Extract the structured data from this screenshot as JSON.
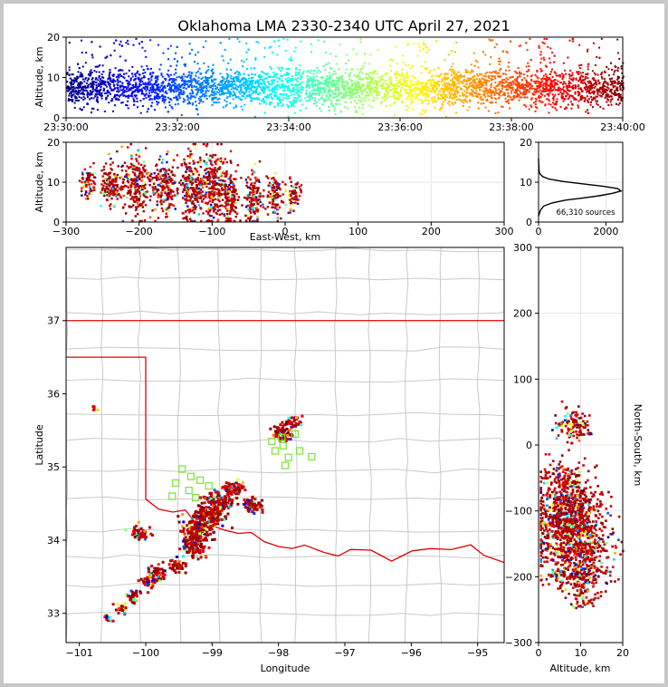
{
  "chart_data": [
    {
      "panel": "time-height",
      "type": "scatter",
      "title": "Oklahoma LMA 2330-2340 UTC April 27, 2021",
      "xlabel": "",
      "ylabel": "Altitude, km",
      "xlim": [
        "23:30:00",
        "23:40:00"
      ],
      "ylim": [
        0,
        20
      ],
      "x_ticks": [
        "23:30:00",
        "23:32:00",
        "23:34:00",
        "23:36:00",
        "23:38:00",
        "23:40:00"
      ],
      "y_ticks": [
        "0",
        "10",
        "20"
      ],
      "colormap": "jet (time)",
      "density_profile": {
        "core_altitude_km": [
          3,
          12
        ],
        "sparse_max_km": 20
      }
    },
    {
      "panel": "east-west-altitude",
      "type": "scatter",
      "xlabel": "East-West, km",
      "ylabel": "Altitude, km",
      "xlim": [
        -300,
        300
      ],
      "ylim": [
        0,
        20
      ],
      "x_ticks": [
        "−300",
        "−200",
        "−100",
        "0",
        "100",
        "200",
        "300"
      ],
      "y_ticks": [
        "0",
        "10",
        "20"
      ],
      "clusters": [
        {
          "x": -270,
          "y": 10,
          "spread_x": 8,
          "spread_y": 2
        },
        {
          "x": -240,
          "y": 10,
          "spread_x": 12,
          "spread_y": 3
        },
        {
          "x": -205,
          "y": 9,
          "spread_x": 14,
          "spread_y": 4
        },
        {
          "x": -165,
          "y": 9,
          "spread_x": 12,
          "spread_y": 4
        },
        {
          "x": -130,
          "y": 9,
          "spread_x": 10,
          "spread_y": 5
        },
        {
          "x": -100,
          "y": 9,
          "spread_x": 14,
          "spread_y": 5
        },
        {
          "x": -75,
          "y": 7,
          "spread_x": 8,
          "spread_y": 4
        },
        {
          "x": -45,
          "y": 6,
          "spread_x": 8,
          "spread_y": 4
        },
        {
          "x": -15,
          "y": 7,
          "spread_x": 8,
          "spread_y": 3
        },
        {
          "x": 10,
          "y": 7,
          "spread_x": 8,
          "spread_y": 2
        }
      ]
    },
    {
      "panel": "altitude-histogram",
      "type": "line",
      "xlabel": "",
      "ylabel": "",
      "xlim": [
        0,
        2500
      ],
      "ylim": [
        0,
        20
      ],
      "x_ticks": [
        "0",
        "2000"
      ],
      "y_ticks": [
        "0",
        "10",
        "20"
      ],
      "annotation": "66,310 sources",
      "x": [
        0,
        20,
        60,
        150,
        400,
        800,
        1300,
        1800,
        2200,
        2450,
        2350,
        1900,
        1300,
        700,
        300,
        120,
        50,
        20,
        10,
        5,
        0
      ],
      "y": [
        1.5,
        2,
        3,
        4,
        4.8,
        5.5,
        6,
        6.6,
        7.2,
        7.8,
        8.4,
        9,
        9.6,
        10.2,
        10.8,
        11.4,
        12,
        12.6,
        13.4,
        14.5,
        16
      ]
    },
    {
      "panel": "plan-view",
      "type": "scatter",
      "xlabel": "Longitude",
      "ylabel": "Latitude",
      "xlim": [
        -101.2,
        -94.6
      ],
      "ylim": [
        32.6,
        38.0
      ],
      "x_ticks": [
        "−101",
        "−100",
        "−99",
        "−98",
        "−97",
        "−96",
        "−95"
      ],
      "y_ticks": [
        "33",
        "34",
        "35",
        "36",
        "37"
      ],
      "stations_color": "#7fe03a",
      "stations": [
        [
          -99.45,
          34.97
        ],
        [
          -99.32,
          34.87
        ],
        [
          -99.18,
          34.82
        ],
        [
          -99.05,
          34.74
        ],
        [
          -99.55,
          34.78
        ],
        [
          -99.35,
          34.68
        ],
        [
          -99.6,
          34.6
        ],
        [
          -99.25,
          34.58
        ],
        [
          -97.93,
          35.29
        ],
        [
          -98.05,
          35.22
        ],
        [
          -97.85,
          35.13
        ],
        [
          -97.68,
          35.22
        ],
        [
          -97.5,
          35.14
        ],
        [
          -97.9,
          35.02
        ],
        [
          -97.95,
          35.4
        ],
        [
          -98.1,
          35.35
        ],
        [
          -97.75,
          35.45
        ]
      ],
      "clusters": [
        {
          "lon": -100.8,
          "lat": 35.83,
          "s": 0.05,
          "n": 6
        },
        {
          "lon": -100.6,
          "lat": 32.95,
          "s": 0.05,
          "n": 10
        },
        {
          "lon": -100.4,
          "lat": 33.1,
          "s": 0.06,
          "n": 20
        },
        {
          "lon": -100.2,
          "lat": 33.25,
          "s": 0.07,
          "n": 30
        },
        {
          "lon": -100.0,
          "lat": 33.45,
          "s": 0.07,
          "n": 30
        },
        {
          "lon": -99.85,
          "lat": 33.55,
          "s": 0.1,
          "n": 60
        },
        {
          "lon": -99.55,
          "lat": 33.68,
          "s": 0.08,
          "n": 40
        },
        {
          "lon": -100.1,
          "lat": 34.1,
          "s": 0.1,
          "n": 45
        },
        {
          "lon": -99.3,
          "lat": 33.95,
          "s": 0.12,
          "n": 120
        },
        {
          "lon": -99.25,
          "lat": 34.15,
          "s": 0.13,
          "n": 140
        },
        {
          "lon": -99.05,
          "lat": 34.35,
          "s": 0.15,
          "n": 160
        },
        {
          "lon": -98.9,
          "lat": 34.55,
          "s": 0.12,
          "n": 110
        },
        {
          "lon": -98.7,
          "lat": 34.72,
          "s": 0.1,
          "n": 70
        },
        {
          "lon": -98.4,
          "lat": 34.5,
          "s": 0.09,
          "n": 60
        },
        {
          "lon": -97.95,
          "lat": 35.48,
          "s": 0.09,
          "n": 60
        },
        {
          "lon": -97.8,
          "lat": 35.63,
          "s": 0.07,
          "n": 40
        }
      ],
      "border_color": "#e00000",
      "county_color": "#c8c8c8"
    },
    {
      "panel": "altitude-north-south",
      "type": "scatter",
      "xlabel": "Altitude, km",
      "ylabel": "North-South, km",
      "xlim": [
        0,
        20
      ],
      "ylim": [
        -300,
        300
      ],
      "x_ticks": [
        "0",
        "10",
        "20"
      ],
      "y_ticks": [
        "−300",
        "−200",
        "−100",
        "0",
        "100",
        "200",
        "300"
      ],
      "clusters": [
        {
          "alt": 8,
          "ns": 30,
          "s_alt": 2,
          "s_ns": 12,
          "n": 120
        },
        {
          "alt": 6,
          "ns": -50,
          "s_alt": 3,
          "s_ns": 15,
          "n": 150
        },
        {
          "alt": 7,
          "ns": -95,
          "s_alt": 4,
          "s_ns": 18,
          "n": 400
        },
        {
          "alt": 8,
          "ns": -125,
          "s_alt": 4,
          "s_ns": 15,
          "n": 350
        },
        {
          "alt": 8,
          "ns": -160,
          "s_alt": 4,
          "s_ns": 12,
          "n": 300
        },
        {
          "alt": 9,
          "ns": -195,
          "s_alt": 4,
          "s_ns": 10,
          "n": 200
        },
        {
          "alt": 10,
          "ns": -230,
          "s_alt": 2,
          "s_ns": 10,
          "n": 60
        }
      ]
    }
  ]
}
